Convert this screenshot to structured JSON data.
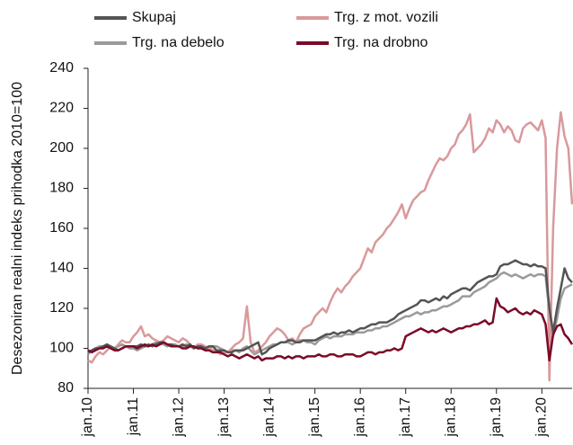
{
  "chart_data": {
    "type": "line",
    "y_label": "Desezoniran realni indeks prihodka 2010=100",
    "categories": [
      "jan.10",
      null,
      null,
      null,
      null,
      null,
      null,
      null,
      null,
      null,
      null,
      null,
      "jan.11",
      null,
      null,
      null,
      null,
      null,
      null,
      null,
      null,
      null,
      null,
      null,
      "jan.12",
      null,
      null,
      null,
      null,
      null,
      null,
      null,
      null,
      null,
      null,
      null,
      "jan.13",
      null,
      null,
      null,
      null,
      null,
      null,
      null,
      null,
      null,
      null,
      null,
      "jan.14",
      null,
      null,
      null,
      null,
      null,
      null,
      null,
      null,
      null,
      null,
      null,
      "jan.15",
      null,
      null,
      null,
      null,
      null,
      null,
      null,
      null,
      null,
      null,
      null,
      "jan.16",
      null,
      null,
      null,
      null,
      null,
      null,
      null,
      null,
      null,
      null,
      null,
      "jan.17",
      null,
      null,
      null,
      null,
      null,
      null,
      null,
      null,
      null,
      null,
      null,
      "jan.18",
      null,
      null,
      null,
      null,
      null,
      null,
      null,
      null,
      null,
      null,
      null,
      "jan.19",
      null,
      null,
      null,
      null,
      null,
      null,
      null,
      null,
      null,
      null,
      null,
      "jan.20",
      null,
      null,
      null,
      null,
      null,
      null,
      null,
      null
    ],
    "series": [
      {
        "name": "Skupaj",
        "color": "#545454",
        "values": [
          98,
          99,
          100,
          100,
          101,
          102,
          101,
          100,
          99,
          100,
          101,
          101,
          101,
          101,
          102,
          101,
          102,
          101,
          102,
          103,
          103,
          102,
          102,
          101,
          101,
          102,
          101,
          102,
          100,
          101,
          101,
          100,
          101,
          101,
          99,
          99,
          99,
          98,
          98,
          99,
          99,
          99,
          100,
          101,
          102,
          103,
          97,
          98,
          100,
          101,
          102,
          103,
          103,
          104,
          104,
          103,
          103,
          104,
          104,
          104,
          104,
          105,
          106,
          107,
          107,
          108,
          107,
          108,
          108,
          109,
          108,
          109,
          110,
          110,
          111,
          112,
          112,
          113,
          113,
          113,
          114,
          115,
          117,
          118,
          119,
          120,
          121,
          122,
          124,
          124,
          123,
          124,
          125,
          124,
          126,
          125,
          127,
          128,
          129,
          130,
          130,
          129,
          131,
          133,
          134,
          135,
          136,
          136,
          137,
          141,
          142,
          142,
          143,
          144,
          143,
          142,
          142,
          141,
          142,
          141,
          141,
          140,
          120,
          108,
          120,
          130,
          140,
          135,
          133
        ]
      },
      {
        "name": "Trg. z mot. vozili",
        "color": "#d9999b",
        "values": [
          94,
          93,
          96,
          98,
          97,
          99,
          101,
          100,
          102,
          104,
          103,
          103,
          106,
          108,
          111,
          106,
          107,
          105,
          104,
          103,
          104,
          106,
          105,
          104,
          103,
          105,
          104,
          102,
          100,
          102,
          102,
          101,
          100,
          99,
          99,
          97,
          98,
          98,
          100,
          102,
          103,
          105,
          121,
          103,
          98,
          99,
          101,
          103,
          106,
          108,
          110,
          109,
          107,
          104,
          105,
          103,
          107,
          110,
          111,
          112,
          116,
          118,
          120,
          118,
          123,
          127,
          130,
          128,
          131,
          133,
          136,
          138,
          140,
          145,
          150,
          148,
          153,
          155,
          157,
          160,
          162,
          165,
          168,
          172,
          165,
          170,
          174,
          176,
          178,
          179,
          184,
          188,
          192,
          195,
          194,
          196,
          200,
          202,
          207,
          209,
          212,
          217,
          198,
          200,
          202,
          205,
          210,
          208,
          214,
          212,
          208,
          211,
          209,
          204,
          203,
          210,
          212,
          213,
          211,
          209,
          214,
          205,
          84,
          160,
          200,
          218,
          206,
          200,
          172
        ]
      },
      {
        "name": "Trg. na debelo",
        "color": "#9a9a9a",
        "values": [
          97,
          99,
          100,
          101,
          101,
          102,
          101,
          100,
          101,
          102,
          101,
          100,
          100,
          99,
          100,
          101,
          101,
          102,
          103,
          103,
          102,
          101,
          102,
          102,
          101,
          101,
          102,
          101,
          100,
          101,
          100,
          99,
          100,
          101,
          101,
          100,
          99,
          98,
          99,
          99,
          98,
          100,
          101,
          99,
          97,
          98,
          99,
          100,
          101,
          102,
          102,
          103,
          103,
          103,
          102,
          103,
          104,
          104,
          103,
          103,
          102,
          104,
          105,
          106,
          105,
          106,
          106,
          106,
          107,
          107,
          107,
          108,
          108,
          108,
          109,
          109,
          110,
          110,
          111,
          111,
          112,
          113,
          114,
          115,
          116,
          116,
          117,
          118,
          117,
          118,
          118,
          119,
          119,
          120,
          121,
          121,
          122,
          123,
          124,
          126,
          126,
          126,
          128,
          129,
          130,
          131,
          133,
          134,
          135,
          137,
          138,
          137,
          136,
          137,
          136,
          135,
          136,
          137,
          136,
          137,
          137,
          136,
          118,
          106,
          115,
          125,
          130,
          131,
          132
        ]
      },
      {
        "name": "Trg. na drobno",
        "color": "#7b0a28",
        "values": [
          99,
          98,
          99,
          100,
          100,
          101,
          100,
          99,
          99,
          100,
          101,
          101,
          101,
          100,
          101,
          102,
          101,
          102,
          101,
          102,
          103,
          102,
          101,
          101,
          101,
          100,
          100,
          101,
          101,
          100,
          100,
          99,
          99,
          98,
          98,
          98,
          97,
          96,
          97,
          96,
          95,
          96,
          97,
          96,
          95,
          96,
          94,
          95,
          95,
          95,
          96,
          96,
          95,
          96,
          95,
          96,
          96,
          95,
          96,
          96,
          96,
          97,
          96,
          96,
          97,
          97,
          96,
          96,
          97,
          97,
          97,
          96,
          96,
          97,
          98,
          98,
          97,
          98,
          98,
          99,
          99,
          100,
          99,
          100,
          106,
          107,
          108,
          109,
          110,
          109,
          108,
          109,
          108,
          109,
          110,
          109,
          108,
          109,
          110,
          110,
          111,
          111,
          112,
          112,
          113,
          114,
          112,
          113,
          125,
          121,
          120,
          118,
          119,
          120,
          118,
          117,
          118,
          117,
          119,
          118,
          117,
          112,
          94,
          107,
          111,
          112,
          107,
          105,
          102
        ]
      }
    ],
    "ylim": [
      80,
      240
    ],
    "yticks": [
      80,
      100,
      120,
      140,
      160,
      180,
      200,
      220,
      240
    ],
    "grid": false
  }
}
